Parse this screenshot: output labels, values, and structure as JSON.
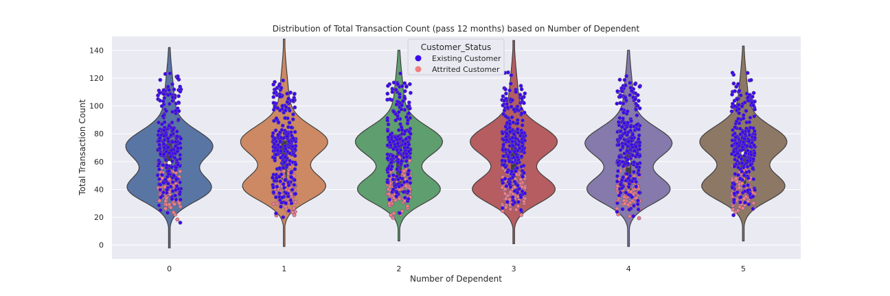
{
  "chart_data": {
    "type": "violin",
    "title": "Distribution of Total Transaction Count (pass 12 months) based on Number of Dependent",
    "xlabel": "Number of Dependent",
    "ylabel": "Total Transaction Count",
    "categories": [
      "0",
      "1",
      "2",
      "3",
      "4",
      "5"
    ],
    "ylim": [
      -10,
      150
    ],
    "yticks": [
      0,
      20,
      40,
      60,
      80,
      100,
      120,
      140
    ],
    "grid": true,
    "legend": {
      "title": "Customer_Status",
      "placement": "top-center",
      "entries": [
        {
          "label": "Existing Customer",
          "color": "#3a07f0"
        },
        {
          "label": "Attrited Customer",
          "color": "#f08080"
        }
      ]
    },
    "violin_colors": [
      "#5975a4",
      "#cc8963",
      "#5f9e6e",
      "#b55d60",
      "#857aab",
      "#8d7866"
    ],
    "distributions": [
      {
        "category": "0",
        "min": -2,
        "max": 142,
        "q1": 39,
        "median": 59,
        "q3": 73,
        "peaks": [
          41,
          71
        ]
      },
      {
        "category": "1",
        "min": -1,
        "max": 148,
        "q1": 40,
        "median": 62,
        "q3": 75,
        "peaks": [
          42,
          74
        ]
      },
      {
        "category": "2",
        "min": 3,
        "max": 140,
        "q1": 38,
        "median": 62,
        "q3": 75,
        "peaks": [
          40,
          74
        ]
      },
      {
        "category": "3",
        "min": 1,
        "max": 147,
        "q1": 39,
        "median": 62,
        "q3": 76,
        "peaks": [
          40,
          74
        ]
      },
      {
        "category": "4",
        "min": -1,
        "max": 140,
        "q1": 39,
        "median": 60,
        "q3": 74,
        "peaks": [
          40,
          73
        ]
      },
      {
        "category": "5",
        "min": 3,
        "max": 143,
        "q1": 44,
        "median": 66,
        "q3": 79,
        "peaks": [
          42,
          74
        ]
      }
    ],
    "point_ranges": {
      "existing": [
        15,
        138
      ],
      "attrited": [
        10,
        95
      ]
    }
  },
  "colors": {
    "plot_bg": "#eaeaf2",
    "grid": "#ffffff",
    "outline": "#3f3f3f",
    "existing": "#3a07f0",
    "attrited": "#f08080",
    "point_edge": "#6b5a8a"
  }
}
